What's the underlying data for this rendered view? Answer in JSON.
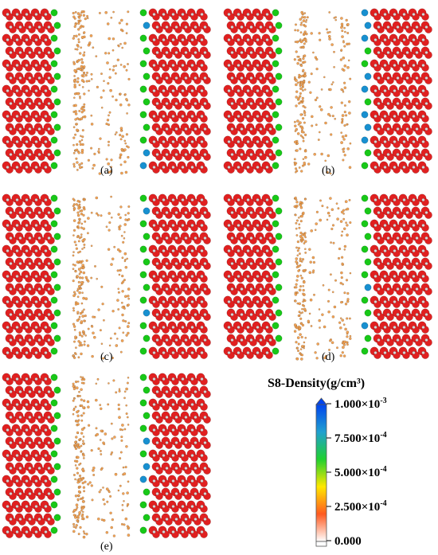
{
  "panels": [
    {
      "id": "a",
      "label": "(a)",
      "ratio": 0.25
    },
    {
      "id": "b",
      "label": "(b)",
      "ratio": 0.4
    },
    {
      "id": "c",
      "label": "(c)",
      "ratio": 0.3
    },
    {
      "id": "d",
      "label": "(d)",
      "ratio": 0.2
    },
    {
      "id": "e",
      "label": "(e)",
      "ratio": 0.2
    }
  ],
  "colorbar": {
    "title": "S8-Density(g/cm³)",
    "ticks": [
      {
        "mantissa": "1.000×10",
        "exp": "-3",
        "value": 1.0
      },
      {
        "mantissa": "7.500×10",
        "exp": "-4",
        "value": 0.75
      },
      {
        "mantissa": "5.000×10",
        "exp": "-4",
        "value": 0.5
      },
      {
        "mantissa": "2.500×10",
        "exp": "-4",
        "value": 0.25
      },
      {
        "mantissa": "0.000",
        "exp": "",
        "value": 0.0
      }
    ],
    "stops": [
      "#ffffff",
      "#ff5a20",
      "#ffe800",
      "#20d030",
      "#20a0d0",
      "#0044ee"
    ]
  },
  "colors": {
    "oxygen": "#e02020",
    "green_atom": "#18c818",
    "blue_atom": "#1890d0",
    "white_atom": "#d8d8d8",
    "sulfur": "#f4a455"
  }
}
